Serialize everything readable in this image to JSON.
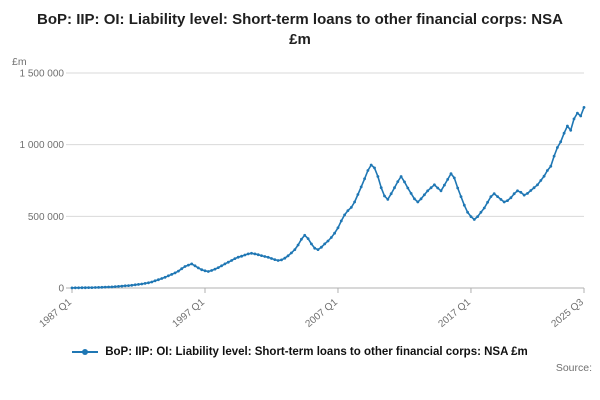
{
  "page": {
    "source_label": "Source:"
  },
  "chart_data": {
    "type": "line",
    "title": "BoP: IIP: OI: Liability level: Short-term loans to other financial corps: NSA £m",
    "legend": "BoP: IIP: OI: Liability level: Short-term loans to other financial corps: NSA £m",
    "unit": "£m",
    "line_color": "#1f77b4",
    "grid_color": "#d9d9d9",
    "tick_label_color": "#707070",
    "x_start": "1987 Q1",
    "x_end": "2025 Q3",
    "frequency": "quarterly",
    "ylim": [
      0,
      1500000
    ],
    "y_ticks": [
      {
        "value": 0,
        "label": "0"
      },
      {
        "value": 500000,
        "label": "500 000"
      },
      {
        "value": 1000000,
        "label": "1 000 000"
      },
      {
        "value": 1500000,
        "label": "1 500 000"
      }
    ],
    "x_ticks": [
      {
        "index": 0,
        "label": "1987 Q1"
      },
      {
        "index": 40,
        "label": "1997 Q1"
      },
      {
        "index": 80,
        "label": "2007 Q1"
      },
      {
        "index": 120,
        "label": "2017 Q1"
      },
      {
        "index": 154,
        "label": "2025 Q3"
      }
    ],
    "values": [
      1000,
      1200,
      1500,
      1800,
      2200,
      2600,
      3000,
      3500,
      4200,
      5000,
      6000,
      7000,
      8000,
      9500,
      11000,
      13000,
      15000,
      17000,
      19000,
      22000,
      25000,
      28000,
      32000,
      36000,
      42000,
      50000,
      58000,
      66000,
      75000,
      85000,
      95000,
      105000,
      118000,
      135000,
      150000,
      160000,
      168000,
      155000,
      140000,
      128000,
      120000,
      115000,
      122000,
      132000,
      142000,
      155000,
      168000,
      180000,
      192000,
      205000,
      215000,
      222000,
      230000,
      238000,
      242000,
      238000,
      232000,
      226000,
      220000,
      214000,
      206000,
      198000,
      192000,
      196000,
      208000,
      225000,
      245000,
      268000,
      300000,
      340000,
      368000,
      345000,
      308000,
      278000,
      268000,
      285000,
      308000,
      328000,
      352000,
      382000,
      420000,
      468000,
      510000,
      540000,
      562000,
      600000,
      652000,
      705000,
      762000,
      820000,
      858000,
      838000,
      778000,
      700000,
      642000,
      618000,
      658000,
      700000,
      742000,
      778000,
      740000,
      698000,
      660000,
      622000,
      600000,
      622000,
      650000,
      678000,
      700000,
      720000,
      698000,
      678000,
      718000,
      758000,
      798000,
      768000,
      698000,
      638000,
      578000,
      528000,
      498000,
      478000,
      498000,
      528000,
      558000,
      598000,
      638000,
      658000,
      638000,
      618000,
      600000,
      610000,
      630000,
      658000,
      678000,
      668000,
      648000,
      660000,
      680000,
      700000,
      720000,
      750000,
      780000,
      820000,
      850000,
      920000,
      980000,
      1020000,
      1080000,
      1130000,
      1100000,
      1180000,
      1220000,
      1200000,
      1260000
    ]
  }
}
